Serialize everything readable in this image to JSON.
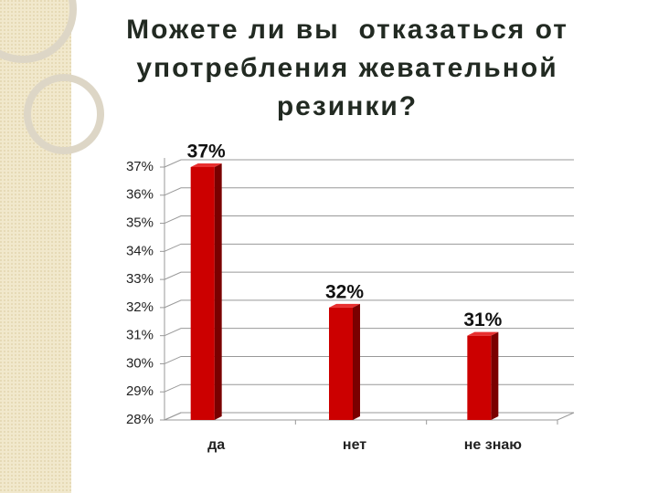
{
  "chart_data": {
    "type": "bar",
    "title": "Можете ли вы  отказаться от употребления жевательной резинки?",
    "categories": [
      "да",
      "нет",
      "не знаю"
    ],
    "values": [
      37,
      32,
      31
    ],
    "value_labels": [
      "37%",
      "32%",
      "31%"
    ],
    "color": "#cc0000",
    "ylim": [
      28,
      37
    ],
    "yticks": [
      {
        "value": 28,
        "label": "28%"
      },
      {
        "value": 29,
        "label": "29%"
      },
      {
        "value": 30,
        "label": "30%"
      },
      {
        "value": 31,
        "label": "31%"
      },
      {
        "value": 32,
        "label": "32%"
      },
      {
        "value": 33,
        "label": "33%"
      },
      {
        "value": 34,
        "label": "34%"
      },
      {
        "value": 35,
        "label": "35%"
      },
      {
        "value": 36,
        "label": "36%"
      },
      {
        "value": 37,
        "label": "37%"
      }
    ],
    "grid": true
  }
}
